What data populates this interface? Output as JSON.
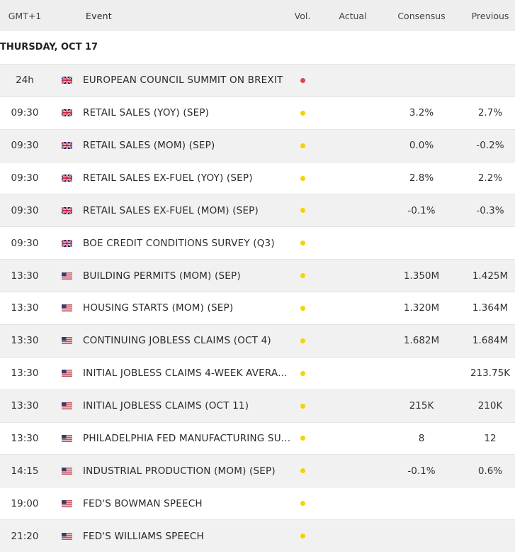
{
  "header": {
    "time": "GMT+1",
    "event": "Event",
    "volatility": "Vol.",
    "actual": "Actual",
    "consensus": "Consensus",
    "previous": "Previous"
  },
  "date": "THURSDAY, OCT 17",
  "rows": [
    {
      "time": "24h",
      "event": "EUROPEAN COUNCIL SUMMIT ON BREXIT"
    },
    {
      "time": "09:30",
      "event": "RETAIL SALES (YOY) (SEP)",
      "consensus": "3.2%",
      "previous": "2.7%"
    },
    {
      "time": "09:30",
      "event": "RETAIL SALES (MOM) (SEP)",
      "consensus": "0.0%",
      "previous": "-0.2%"
    },
    {
      "time": "09:30",
      "event": "RETAIL SALES EX-FUEL (YOY) (SEP)",
      "consensus": "2.8%",
      "previous": "2.2%"
    },
    {
      "time": "09:30",
      "event": "RETAIL SALES EX-FUEL (MOM) (SEP)",
      "consensus": "-0.1%",
      "previous": "-0.3%"
    },
    {
      "time": "09:30",
      "event": "BOE CREDIT CONDITIONS SURVEY (Q3)"
    },
    {
      "time": "13:30",
      "event": "BUILDING PERMITS (MOM) (SEP)",
      "consensus": "1.350M",
      "previous": "1.425M"
    },
    {
      "time": "13:30",
      "event": "HOUSING STARTS (MOM) (SEP)",
      "consensus": "1.320M",
      "previous": "1.364M"
    },
    {
      "time": "13:30",
      "event": "CONTINUING JOBLESS CLAIMS (OCT 4)",
      "consensus": "1.682M",
      "previous": "1.684M"
    },
    {
      "time": "13:30",
      "event": "INITIAL JOBLESS CLAIMS 4-WEEK AVERA...",
      "previous": "213.75K"
    },
    {
      "time": "13:30",
      "event": "INITIAL JOBLESS CLAIMS (OCT 11)",
      "consensus": "215K",
      "previous": "210K"
    },
    {
      "time": "13:30",
      "event": "PHILADELPHIA FED MANUFACTURING SU...",
      "consensus": "8",
      "previous": "12"
    },
    {
      "time": "14:15",
      "event": "INDUSTRIAL PRODUCTION (MOM) (SEP)",
      "consensus": "-0.1%",
      "previous": "0.6%"
    },
    {
      "time": "19:00",
      "event": "FED'S BOWMAN SPEECH"
    },
    {
      "time": "21:20",
      "event": "FED'S WILLIAMS SPEECH"
    }
  ]
}
